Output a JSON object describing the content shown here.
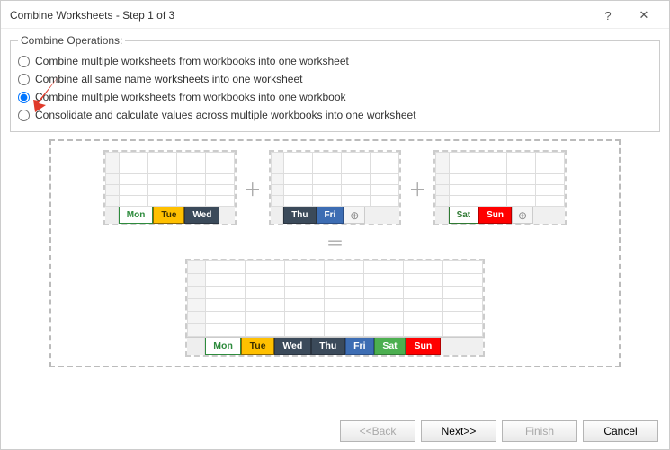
{
  "window": {
    "title": "Combine Worksheets - Step 1 of 3",
    "help_glyph": "?",
    "close_glyph": "✕"
  },
  "fieldset": {
    "legend": "Combine Operations:",
    "options": [
      "Combine multiple worksheets from workbooks into one worksheet",
      "Combine all same name worksheets into one worksheet",
      "Combine multiple worksheets from workbooks into one workbook",
      "Consolidate and calculate values across multiple workbooks into one worksheet"
    ],
    "selected_index": 2
  },
  "colors": {
    "mon": {
      "bg": "#ffffff",
      "border": "#2e8b3d",
      "text": "#2e8b3d"
    },
    "tue": {
      "bg": "#ffc000",
      "border": "#8a6500",
      "text": "#3b2f00"
    },
    "wed": {
      "bg": "#3b4a5a",
      "border": "#2a3440",
      "text": "#ffffff"
    },
    "thu": {
      "bg": "#3b4a5a",
      "border": "#2a3440",
      "text": "#ffffff"
    },
    "fri": {
      "bg": "#3d6db3",
      "border": "#2a4e86",
      "text": "#ffffff"
    },
    "sat": {
      "bg": "#4caf50",
      "border": "#2f7a33",
      "text": "#ffffff"
    },
    "satwhite": {
      "bg": "#ffffff",
      "border": "#2f7a33",
      "text": "#2f7a33"
    },
    "sun": {
      "bg": "#ff0000",
      "border": "#b30000",
      "text": "#ffffff"
    }
  },
  "books": {
    "a": {
      "tabs": [
        "Mon",
        "Tue",
        "Wed"
      ],
      "styles": [
        "mon",
        "tue",
        "wed"
      ],
      "add": false
    },
    "b": {
      "tabs": [
        "Thu",
        "Fri"
      ],
      "styles": [
        "thu",
        "fri"
      ],
      "add": true
    },
    "c": {
      "tabs": [
        "Sat",
        "Sun"
      ],
      "styles": [
        "satwhite",
        "sun"
      ],
      "add": true
    },
    "result": {
      "tabs": [
        "Mon",
        "Tue",
        "Wed",
        "Thu",
        "Fri",
        "Sat",
        "Sun"
      ],
      "styles": [
        "mon",
        "tue",
        "wed",
        "thu",
        "fri",
        "sat",
        "sun"
      ],
      "add": false
    }
  },
  "ops": {
    "plus": "＋",
    "equals": "＝",
    "addsheet": "⊕"
  },
  "buttons": {
    "back": "<<Back",
    "next": "Next>>",
    "finish": "Finish",
    "cancel": "Cancel"
  }
}
